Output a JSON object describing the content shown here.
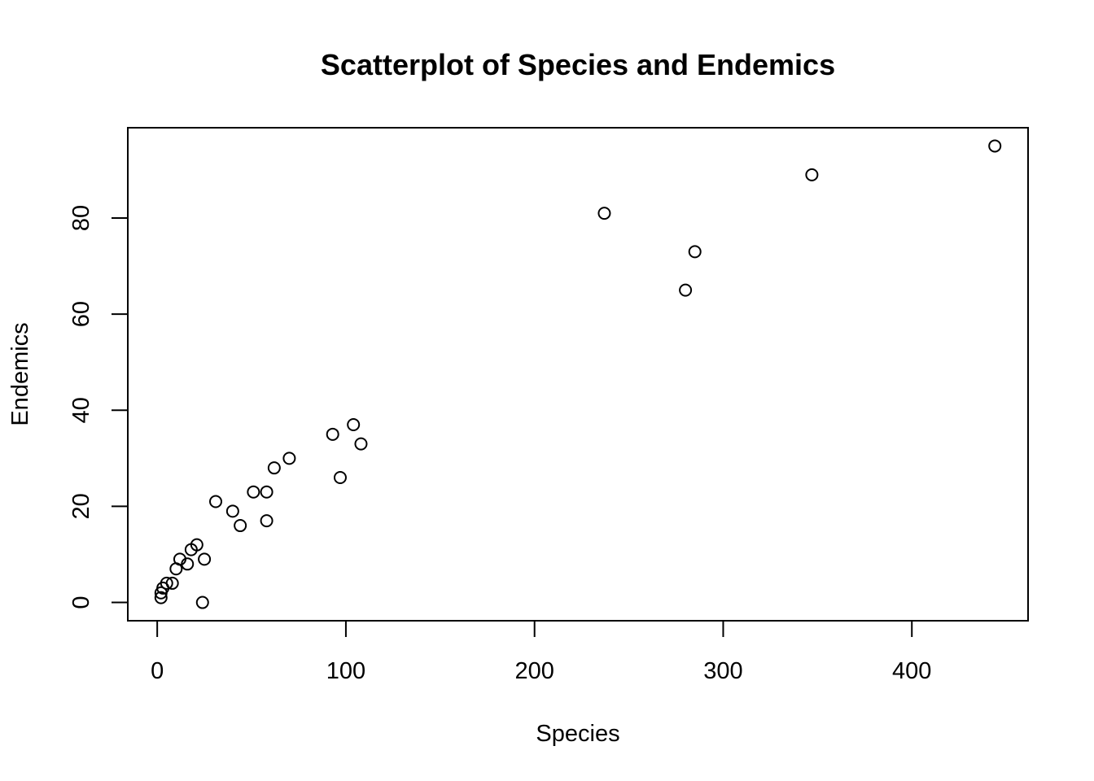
{
  "chart_data": {
    "type": "scatter",
    "title": "Scatterplot of Species and Endemics",
    "xlabel": "Species",
    "ylabel": "Endemics",
    "xlim": [
      -15.6,
      461.6
    ],
    "ylim": [
      -3.8,
      98.8
    ],
    "xticks": [
      0,
      100,
      200,
      300,
      400
    ],
    "yticks": [
      0,
      20,
      40,
      60,
      80
    ],
    "grid": false,
    "legend": "none",
    "marker": "open-circle",
    "points": [
      {
        "x": 2,
        "y": 1
      },
      {
        "x": 2,
        "y": 2
      },
      {
        "x": 3,
        "y": 3
      },
      {
        "x": 5,
        "y": 4
      },
      {
        "x": 8,
        "y": 4
      },
      {
        "x": 10,
        "y": 7
      },
      {
        "x": 12,
        "y": 9
      },
      {
        "x": 16,
        "y": 8
      },
      {
        "x": 18,
        "y": 11
      },
      {
        "x": 21,
        "y": 12
      },
      {
        "x": 24,
        "y": 0
      },
      {
        "x": 25,
        "y": 9
      },
      {
        "x": 31,
        "y": 21
      },
      {
        "x": 40,
        "y": 19
      },
      {
        "x": 44,
        "y": 16
      },
      {
        "x": 51,
        "y": 23
      },
      {
        "x": 58,
        "y": 17
      },
      {
        "x": 58,
        "y": 23
      },
      {
        "x": 62,
        "y": 28
      },
      {
        "x": 70,
        "y": 30
      },
      {
        "x": 93,
        "y": 35
      },
      {
        "x": 97,
        "y": 26
      },
      {
        "x": 104,
        "y": 37
      },
      {
        "x": 108,
        "y": 33
      },
      {
        "x": 237,
        "y": 81
      },
      {
        "x": 280,
        "y": 65
      },
      {
        "x": 285,
        "y": 73
      },
      {
        "x": 347,
        "y": 89
      },
      {
        "x": 444,
        "y": 95
      }
    ]
  }
}
